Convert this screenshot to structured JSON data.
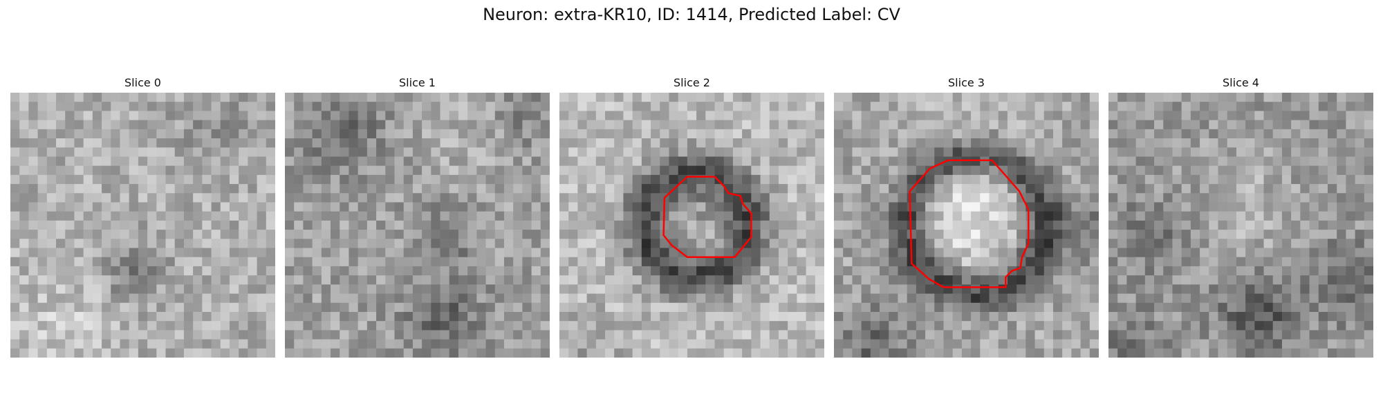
{
  "figure": {
    "title": "Neuron: extra-KR10, ID: 1414, Predicted Label: CV"
  },
  "panels": [
    {
      "title": "Slice 0",
      "has_outline": false
    },
    {
      "title": "Slice 1",
      "has_outline": false
    },
    {
      "title": "Slice 2",
      "has_outline": true
    },
    {
      "title": "Slice 3",
      "has_outline": true
    },
    {
      "title": "Slice 4",
      "has_outline": false
    }
  ],
  "colors": {
    "outline": "#ff0000",
    "colormap": "gray"
  }
}
